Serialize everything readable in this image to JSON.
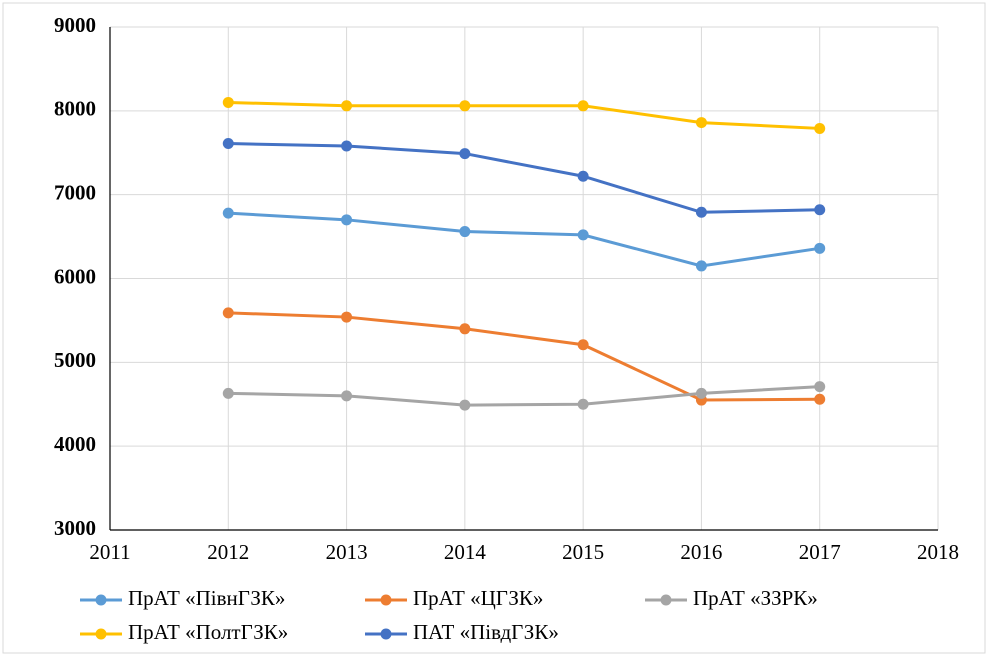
{
  "chart_data": {
    "type": "line",
    "x": [
      2012,
      2013,
      2014,
      2015,
      2016,
      2017
    ],
    "series": [
      {
        "name": "ПрАТ «ПівнГЗК»",
        "color": "#5b9bd5",
        "values": [
          6780,
          6700,
          6560,
          6520,
          6150,
          6360
        ]
      },
      {
        "name": "ПрАТ «ЦГЗК»",
        "color": "#ed7d31",
        "values": [
          5590,
          5540,
          5400,
          5210,
          4550,
          4560
        ]
      },
      {
        "name": "ПрАТ «ЗЗРК»",
        "color": "#a5a5a5",
        "values": [
          4630,
          4600,
          4490,
          4500,
          4630,
          4710
        ]
      },
      {
        "name": "ПрАТ «ПолтГЗК»",
        "color": "#ffc000",
        "values": [
          8100,
          8060,
          8060,
          8060,
          7860,
          7790
        ]
      },
      {
        "name": "ПАТ «ПівдГЗК»",
        "color": "#4472c4",
        "values": [
          7610,
          7580,
          7490,
          7220,
          6790,
          6820
        ]
      }
    ],
    "xlim": [
      2011,
      2018
    ],
    "xticks": [
      2011,
      2012,
      2013,
      2014,
      2015,
      2016,
      2017,
      2018
    ],
    "ylim": [
      3000,
      9000
    ],
    "yticks": [
      3000,
      4000,
      5000,
      6000,
      7000,
      8000,
      9000
    ],
    "grid": true,
    "legend": "bottom"
  }
}
